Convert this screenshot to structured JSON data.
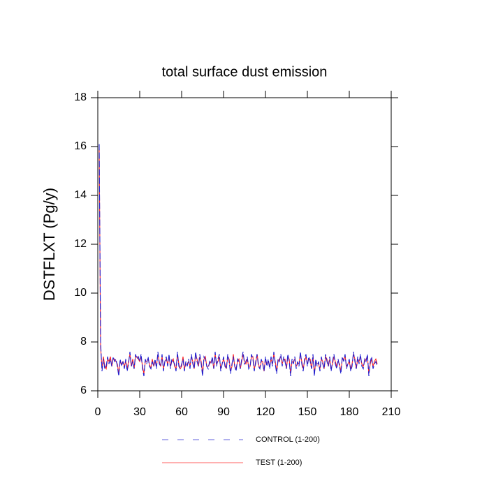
{
  "chart_data": {
    "type": "line",
    "title": "total surface dust emission",
    "y_label": "DSTFLXT  (Pg/y)",
    "x": [
      1,
      2,
      3,
      4,
      5,
      6,
      7,
      8,
      9,
      10,
      11,
      12,
      13,
      14,
      15,
      16,
      17,
      18,
      19,
      20,
      21,
      22,
      23,
      24,
      25,
      26,
      27,
      28,
      29,
      30,
      31,
      32,
      33,
      34,
      35,
      36,
      37,
      38,
      39,
      40,
      41,
      42,
      43,
      44,
      45,
      46,
      47,
      48,
      49,
      50,
      51,
      52,
      53,
      54,
      55,
      56,
      57,
      58,
      59,
      60,
      61,
      62,
      63,
      64,
      65,
      66,
      67,
      68,
      69,
      70,
      71,
      72,
      73,
      74,
      75,
      76,
      77,
      78,
      79,
      80,
      81,
      82,
      83,
      84,
      85,
      86,
      87,
      88,
      89,
      90,
      91,
      92,
      93,
      94,
      95,
      96,
      97,
      98,
      99,
      100,
      101,
      102,
      103,
      104,
      105,
      106,
      107,
      108,
      109,
      110,
      111,
      112,
      113,
      114,
      115,
      116,
      117,
      118,
      119,
      120,
      121,
      122,
      123,
      124,
      125,
      126,
      127,
      128,
      129,
      130,
      131,
      132,
      133,
      134,
      135,
      136,
      137,
      138,
      139,
      140,
      141,
      142,
      143,
      144,
      145,
      146,
      147,
      148,
      149,
      150,
      151,
      152,
      153,
      154,
      155,
      156,
      157,
      158,
      159,
      160,
      161,
      162,
      163,
      164,
      165,
      166,
      167,
      168,
      169,
      170,
      171,
      172,
      173,
      174,
      175,
      176,
      177,
      178,
      179,
      180,
      181,
      182,
      183,
      184,
      185,
      186,
      187,
      188,
      189,
      190,
      191,
      192,
      193,
      194,
      195,
      196,
      197,
      198,
      199,
      200
    ],
    "series": [
      {
        "name": "TEST (1-200)",
        "color": "#ff2020",
        "dashed": false,
        "values": [
          15.9,
          7.8,
          6.9,
          7.4,
          7.0,
          6.9,
          7.3,
          7.2,
          7.4,
          7.0,
          7.3,
          7.3,
          7.2,
          7.1,
          6.7,
          7.2,
          7.1,
          7.2,
          7.0,
          7.2,
          6.9,
          7.2,
          7.5,
          7.0,
          7.3,
          6.9,
          7.4,
          7.4,
          7.3,
          7.2,
          7.4,
          7.0,
          6.7,
          7.2,
          7.2,
          7.3,
          7.1,
          6.9,
          7.3,
          7.0,
          7.2,
          7.0,
          7.5,
          7.2,
          7.0,
          7.4,
          6.9,
          7.2,
          7.3,
          7.1,
          7.4,
          7.0,
          7.2,
          7.3,
          7.0,
          6.9,
          7.5,
          7.1,
          6.9,
          7.0,
          7.4,
          6.9,
          7.1,
          7.1,
          7.2,
          7.0,
          7.4,
          7.2,
          6.9,
          7.5,
          7.3,
          7.0,
          7.4,
          7.2,
          6.7,
          7.3,
          7.4,
          7.0,
          7.0,
          7.1,
          7.2,
          7.3,
          6.9,
          7.5,
          7.1,
          7.2,
          7.4,
          6.9,
          7.1,
          7.3,
          7.1,
          6.9,
          7.4,
          7.3,
          6.8,
          7.0,
          7.5,
          7.0,
          6.9,
          7.2,
          7.3,
          6.9,
          7.2,
          7.5,
          7.2,
          7.1,
          7.3,
          7.0,
          7.0,
          7.4,
          7.4,
          6.9,
          7.1,
          7.5,
          7.1,
          6.9,
          7.2,
          7.2,
          6.8,
          7.3,
          7.1,
          7.2,
          7.0,
          7.3,
          7.1,
          7.5,
          7.2,
          6.8,
          7.2,
          7.3,
          7.4,
          7.1,
          7.3,
          7.3,
          6.9,
          7.4,
          7.3,
          6.7,
          7.2,
          7.2,
          7.3,
          7.0,
          7.1,
          7.1,
          7.5,
          7.2,
          6.9,
          7.2,
          7.4,
          7.1,
          7.3,
          7.3,
          6.9,
          7.4,
          6.7,
          7.2,
          7.1,
          7.1,
          6.9,
          7.3,
          7.2,
          6.9,
          7.4,
          7.3,
          7.0,
          7.3,
          6.9,
          7.1,
          7.4,
          7.2,
          7.0,
          7.2,
          7.1,
          6.8,
          7.3,
          7.3,
          7.4,
          7.0,
          7.1,
          7.2,
          6.9,
          7.1,
          7.5,
          7.3,
          6.9,
          7.3,
          7.2,
          7.4,
          7.1,
          7.0,
          7.2,
          7.3,
          7.4,
          6.7,
          7.1,
          7.3,
          7.0,
          7.2,
          7.3,
          7.1
        ]
      },
      {
        "name": "CONTROL (1-200)",
        "color": "#2020d0",
        "dashed": true,
        "values": [
          16.1,
          8.0,
          6.8,
          7.3,
          6.9,
          7.0,
          7.4,
          7.1,
          7.3,
          7.0,
          7.4,
          7.2,
          7.3,
          7.0,
          6.6,
          7.3,
          7.0,
          7.2,
          6.9,
          7.3,
          6.8,
          7.1,
          7.6,
          7.0,
          7.2,
          6.9,
          7.5,
          7.3,
          7.4,
          7.2,
          7.5,
          6.9,
          6.6,
          7.3,
          7.1,
          7.4,
          7.0,
          6.9,
          7.2,
          7.0,
          7.3,
          6.9,
          7.6,
          7.1,
          7.0,
          7.5,
          6.8,
          7.2,
          7.4,
          7.0,
          7.5,
          6.9,
          7.3,
          7.2,
          7.1,
          6.8,
          7.6,
          7.0,
          6.9,
          7.1,
          7.3,
          6.8,
          7.2,
          7.0,
          7.3,
          6.9,
          7.5,
          7.1,
          6.9,
          7.6,
          7.2,
          7.0,
          7.5,
          7.1,
          6.6,
          7.4,
          7.3,
          7.0,
          6.9,
          7.2,
          7.1,
          7.4,
          6.9,
          7.6,
          7.0,
          7.3,
          7.5,
          6.8,
          7.1,
          7.4,
          7.0,
          6.9,
          7.5,
          7.2,
          6.7,
          7.1,
          7.4,
          7.0,
          6.8,
          7.3,
          7.2,
          6.9,
          7.3,
          7.6,
          7.1,
          7.2,
          7.4,
          6.9,
          7.0,
          7.5,
          7.3,
          6.8,
          7.2,
          7.5,
          7.0,
          6.9,
          7.3,
          7.1,
          6.8,
          7.4,
          7.0,
          7.3,
          6.9,
          7.4,
          7.0,
          7.6,
          7.1,
          6.7,
          7.3,
          7.2,
          7.5,
          7.0,
          7.4,
          7.2,
          6.9,
          7.5,
          7.2,
          6.6,
          7.3,
          7.1,
          7.4,
          6.9,
          7.2,
          7.0,
          7.6,
          7.1,
          6.8,
          7.3,
          7.5,
          7.0,
          7.4,
          7.2,
          6.9,
          7.5,
          6.6,
          7.3,
          7.0,
          7.2,
          6.8,
          7.4,
          7.1,
          6.9,
          7.5,
          7.2,
          7.0,
          7.4,
          6.8,
          7.2,
          7.5,
          7.1,
          6.9,
          7.3,
          7.0,
          6.7,
          7.4,
          7.2,
          7.5,
          6.9,
          7.1,
          7.3,
          6.8,
          7.0,
          7.6,
          7.2,
          6.9,
          7.4,
          7.1,
          7.5,
          7.0,
          6.9,
          7.3,
          7.2,
          7.5,
          6.6,
          7.2,
          7.4,
          6.9,
          7.1,
          7.2,
          7.0
        ]
      }
    ],
    "xlim": [
      0,
      210
    ],
    "xticks": [
      0,
      30,
      60,
      90,
      120,
      150,
      180,
      210
    ],
    "ylim": [
      6,
      18
    ],
    "yticks": [
      6,
      8,
      10,
      12,
      14,
      16,
      18
    ],
    "grid": false
  }
}
